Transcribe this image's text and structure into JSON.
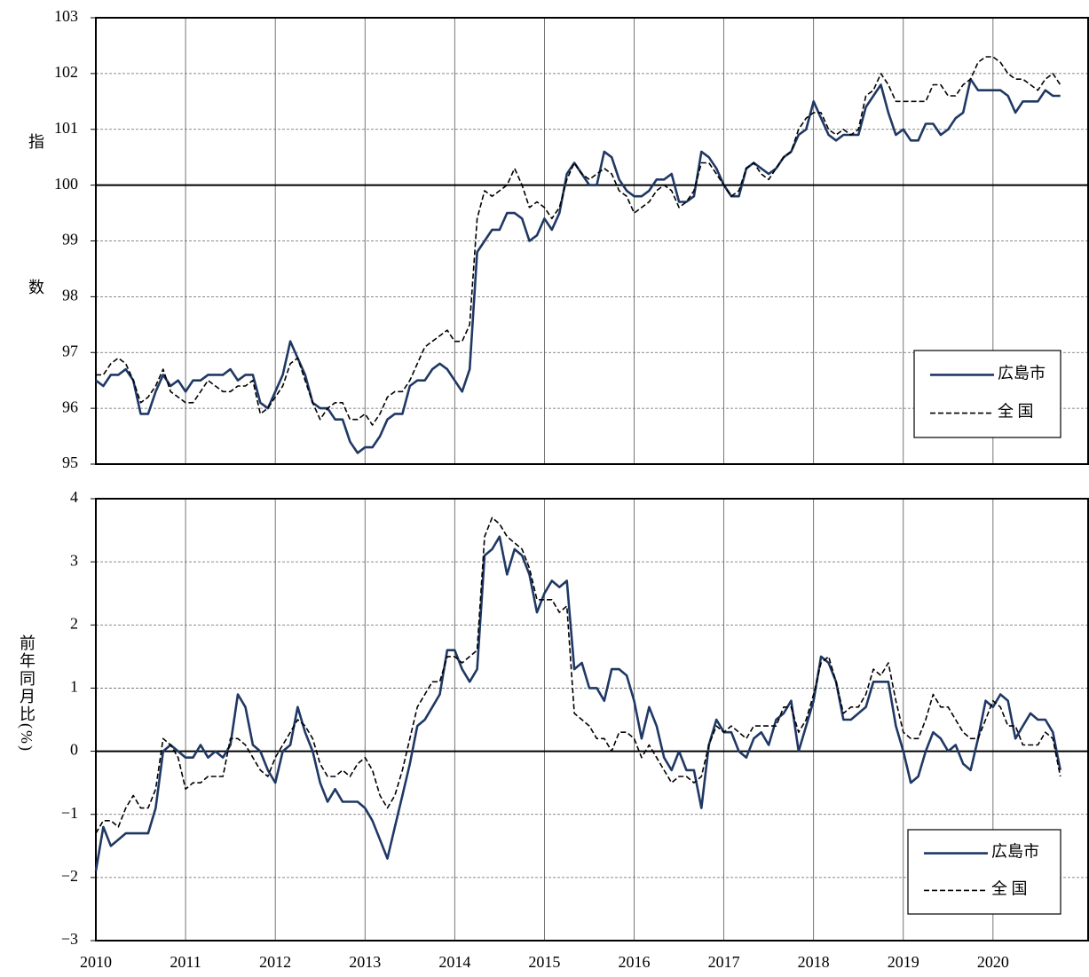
{
  "chart_data": [
    {
      "type": "line",
      "ylabel": "指数",
      "x": [
        2010,
        2010.083,
        2010.167,
        2010.25,
        2010.333,
        2010.417,
        2010.5,
        2010.583,
        2010.667,
        2010.75,
        2010.833,
        2010.917,
        2011,
        2011.083,
        2011.167,
        2011.25,
        2011.333,
        2011.417,
        2011.5,
        2011.583,
        2011.667,
        2011.75,
        2011.833,
        2011.917,
        2012,
        2012.083,
        2012.167,
        2012.25,
        2012.333,
        2012.417,
        2012.5,
        2012.583,
        2012.667,
        2012.75,
        2012.833,
        2012.917,
        2013,
        2013.083,
        2013.167,
        2013.25,
        2013.333,
        2013.417,
        2013.5,
        2013.583,
        2013.667,
        2013.75,
        2013.833,
        2013.917,
        2014,
        2014.083,
        2014.167,
        2014.25,
        2014.333,
        2014.417,
        2014.5,
        2014.583,
        2014.667,
        2014.75,
        2014.833,
        2014.917,
        2015,
        2015.083,
        2015.167,
        2015.25,
        2015.333,
        2015.417,
        2015.5,
        2015.583,
        2015.667,
        2015.75,
        2015.833,
        2015.917,
        2016,
        2016.083,
        2016.167,
        2016.25,
        2016.333,
        2016.417,
        2016.5,
        2016.583,
        2016.667,
        2016.75,
        2016.833,
        2016.917,
        2017,
        2017.083,
        2017.167,
        2017.25,
        2017.333,
        2017.417,
        2017.5,
        2017.583,
        2017.667,
        2017.75,
        2017.833,
        2017.917,
        2018,
        2018.083,
        2018.167,
        2018.25,
        2018.333,
        2018.417,
        2018.5,
        2018.583,
        2018.667,
        2018.75,
        2018.833,
        2018.917,
        2019,
        2019.083,
        2019.167,
        2019.25,
        2019.333,
        2019.417,
        2019.5,
        2019.583,
        2019.667,
        2019.75,
        2019.833,
        2019.917,
        2020,
        2020.083,
        2020.167,
        2020.25,
        2020.333,
        2020.417,
        2020.5,
        2020.583,
        2020.667,
        2020.75
      ],
      "series": [
        {
          "name": "広島市",
          "color": "#1f3864",
          "dash": false,
          "values": [
            96.5,
            96.4,
            96.6,
            96.6,
            96.7,
            96.5,
            95.9,
            95.9,
            96.3,
            96.6,
            96.4,
            96.5,
            96.3,
            96.5,
            96.5,
            96.6,
            96.6,
            96.6,
            96.7,
            96.5,
            96.6,
            96.6,
            96.1,
            96.0,
            96.3,
            96.6,
            97.2,
            96.9,
            96.6,
            96.1,
            96.0,
            96.0,
            95.8,
            95.8,
            95.4,
            95.2,
            95.3,
            95.3,
            95.5,
            95.8,
            95.9,
            95.9,
            96.4,
            96.5,
            96.5,
            96.7,
            96.8,
            96.7,
            96.5,
            96.3,
            96.7,
            98.8,
            99.0,
            99.2,
            99.2,
            99.5,
            99.5,
            99.4,
            99.0,
            99.1,
            99.4,
            99.2,
            99.5,
            100.2,
            100.4,
            100.2,
            100.0,
            100.0,
            100.6,
            100.5,
            100.1,
            99.9,
            99.8,
            99.8,
            99.9,
            100.1,
            100.1,
            100.2,
            99.7,
            99.7,
            99.8,
            100.6,
            100.5,
            100.3,
            100.0,
            99.8,
            99.8,
            100.3,
            100.4,
            100.3,
            100.2,
            100.3,
            100.5,
            100.6,
            100.9,
            101.0,
            101.5,
            101.2,
            100.9,
            100.8,
            100.9,
            100.9,
            100.9,
            101.4,
            101.6,
            101.8,
            101.3,
            100.9,
            101.0,
            100.8,
            100.8,
            101.1,
            101.1,
            100.9,
            101.0,
            101.2,
            101.3,
            101.9,
            101.7,
            101.7,
            101.7,
            101.7,
            101.6,
            101.3,
            101.5,
            101.5,
            101.5,
            101.7,
            101.6,
            101.6
          ]
        },
        {
          "name": "全 国",
          "color": "#000000",
          "dash": true,
          "values": [
            96.6,
            96.6,
            96.8,
            96.9,
            96.8,
            96.5,
            96.1,
            96.2,
            96.4,
            96.7,
            96.3,
            96.2,
            96.1,
            96.1,
            96.3,
            96.5,
            96.4,
            96.3,
            96.3,
            96.4,
            96.4,
            96.5,
            95.9,
            96.0,
            96.2,
            96.4,
            96.8,
            96.9,
            96.5,
            96.1,
            95.8,
            96.0,
            96.1,
            96.1,
            95.8,
            95.8,
            95.9,
            95.7,
            95.9,
            96.2,
            96.3,
            96.3,
            96.5,
            96.8,
            97.1,
            97.2,
            97.3,
            97.4,
            97.2,
            97.2,
            97.5,
            99.4,
            99.9,
            99.8,
            99.9,
            100.0,
            100.3,
            100.0,
            99.6,
            99.7,
            99.6,
            99.4,
            99.6,
            100.1,
            100.4,
            100.2,
            100.1,
            100.2,
            100.3,
            100.2,
            99.9,
            99.8,
            99.5,
            99.6,
            99.7,
            99.9,
            100.0,
            99.9,
            99.6,
            99.7,
            99.9,
            100.4,
            100.4,
            100.2,
            100.0,
            99.8,
            99.9,
            100.3,
            100.4,
            100.2,
            100.1,
            100.3,
            100.5,
            100.6,
            101.0,
            101.2,
            101.3,
            101.3,
            101.0,
            100.9,
            101.0,
            100.9,
            101.0,
            101.6,
            101.7,
            102.0,
            101.8,
            101.5,
            101.5,
            101.5,
            101.5,
            101.5,
            101.8,
            101.8,
            101.6,
            101.6,
            101.8,
            101.9,
            102.2,
            102.3,
            102.3,
            102.2,
            102.0,
            101.9,
            101.9,
            101.8,
            101.7,
            101.9,
            102.0,
            101.8
          ]
        }
      ],
      "xlim": [
        2010,
        2021.06
      ],
      "xticks": [
        2010,
        2011,
        2012,
        2013,
        2014,
        2015,
        2016,
        2017,
        2018,
        2019,
        2020
      ],
      "ylim": [
        95,
        103
      ],
      "yticks": [
        95,
        96,
        97,
        98,
        99,
        100,
        101,
        102,
        103
      ],
      "reference_line": 100,
      "grid": true,
      "legend": "lower right"
    },
    {
      "type": "line",
      "ylabel": "前年同月比(%)",
      "x": [
        2010,
        2010.083,
        2010.167,
        2010.25,
        2010.333,
        2010.417,
        2010.5,
        2010.583,
        2010.667,
        2010.75,
        2010.833,
        2010.917,
        2011,
        2011.083,
        2011.167,
        2011.25,
        2011.333,
        2011.417,
        2011.5,
        2011.583,
        2011.667,
        2011.75,
        2011.833,
        2011.917,
        2012,
        2012.083,
        2012.167,
        2012.25,
        2012.333,
        2012.417,
        2012.5,
        2012.583,
        2012.667,
        2012.75,
        2012.833,
        2012.917,
        2013,
        2013.083,
        2013.167,
        2013.25,
        2013.333,
        2013.417,
        2013.5,
        2013.583,
        2013.667,
        2013.75,
        2013.833,
        2013.917,
        2014,
        2014.083,
        2014.167,
        2014.25,
        2014.333,
        2014.417,
        2014.5,
        2014.583,
        2014.667,
        2014.75,
        2014.833,
        2014.917,
        2015,
        2015.083,
        2015.167,
        2015.25,
        2015.333,
        2015.417,
        2015.5,
        2015.583,
        2015.667,
        2015.75,
        2015.833,
        2015.917,
        2016,
        2016.083,
        2016.167,
        2016.25,
        2016.333,
        2016.417,
        2016.5,
        2016.583,
        2016.667,
        2016.75,
        2016.833,
        2016.917,
        2017,
        2017.083,
        2017.167,
        2017.25,
        2017.333,
        2017.417,
        2017.5,
        2017.583,
        2017.667,
        2017.75,
        2017.833,
        2017.917,
        2018,
        2018.083,
        2018.167,
        2018.25,
        2018.333,
        2018.417,
        2018.5,
        2018.583,
        2018.667,
        2018.75,
        2018.833,
        2018.917,
        2019,
        2019.083,
        2019.167,
        2019.25,
        2019.333,
        2019.417,
        2019.5,
        2019.583,
        2019.667,
        2019.75,
        2019.833,
        2019.917,
        2020,
        2020.083,
        2020.167,
        2020.25,
        2020.333,
        2020.417,
        2020.5,
        2020.583,
        2020.667,
        2020.75
      ],
      "series": [
        {
          "name": "広島市",
          "color": "#1f3864",
          "dash": false,
          "values": [
            -1.9,
            -1.2,
            -1.5,
            -1.4,
            -1.3,
            -1.3,
            -1.3,
            -1.3,
            -0.9,
            0.0,
            0.1,
            0.0,
            -0.1,
            -0.1,
            0.1,
            -0.1,
            0.0,
            -0.1,
            0.1,
            0.9,
            0.7,
            0.1,
            0.0,
            -0.3,
            -0.5,
            0.0,
            0.1,
            0.7,
            0.3,
            0.0,
            -0.5,
            -0.8,
            -0.6,
            -0.8,
            -0.8,
            -0.8,
            -0.9,
            -1.1,
            -1.4,
            -1.7,
            -1.2,
            -0.7,
            -0.2,
            0.4,
            0.5,
            0.7,
            0.9,
            1.6,
            1.6,
            1.3,
            1.1,
            1.3,
            3.1,
            3.2,
            3.4,
            2.8,
            3.2,
            3.1,
            2.8,
            2.2,
            2.5,
            2.7,
            2.6,
            2.7,
            1.3,
            1.4,
            1.0,
            1.0,
            0.8,
            1.3,
            1.3,
            1.2,
            0.8,
            0.2,
            0.7,
            0.4,
            -0.1,
            -0.3,
            0.0,
            -0.3,
            -0.3,
            -0.9,
            0.1,
            0.5,
            0.3,
            0.3,
            0.0,
            -0.1,
            0.2,
            0.3,
            0.1,
            0.5,
            0.6,
            0.8,
            0.0,
            0.4,
            0.8,
            1.5,
            1.4,
            1.1,
            0.5,
            0.5,
            0.6,
            0.7,
            1.1,
            1.1,
            1.1,
            0.4,
            0.0,
            -0.5,
            -0.4,
            0.0,
            0.3,
            0.2,
            0.0,
            0.1,
            -0.2,
            -0.3,
            0.2,
            0.8,
            0.7,
            0.9,
            0.8,
            0.2,
            0.4,
            0.6,
            0.5,
            0.5,
            0.3,
            -0.3
          ]
        },
        {
          "name": "全 国",
          "color": "#000000",
          "dash": true,
          "values": [
            -1.3,
            -1.1,
            -1.1,
            -1.2,
            -0.9,
            -0.7,
            -0.9,
            -0.9,
            -0.6,
            0.2,
            0.1,
            -0.1,
            -0.6,
            -0.5,
            -0.5,
            -0.4,
            -0.4,
            -0.4,
            0.2,
            0.2,
            0.1,
            -0.1,
            -0.3,
            -0.4,
            -0.1,
            0.1,
            0.3,
            0.5,
            0.4,
            0.2,
            -0.2,
            -0.4,
            -0.4,
            -0.3,
            -0.4,
            -0.2,
            -0.1,
            -0.3,
            -0.7,
            -0.9,
            -0.7,
            -0.3,
            0.2,
            0.7,
            0.9,
            1.1,
            1.1,
            1.5,
            1.5,
            1.4,
            1.5,
            1.6,
            3.4,
            3.7,
            3.6,
            3.4,
            3.3,
            3.2,
            2.9,
            2.4,
            2.4,
            2.4,
            2.2,
            2.3,
            0.6,
            0.5,
            0.4,
            0.2,
            0.2,
            0.0,
            0.3,
            0.3,
            0.2,
            -0.1,
            0.1,
            -0.1,
            -0.3,
            -0.5,
            -0.4,
            -0.4,
            -0.5,
            -0.4,
            0.1,
            0.4,
            0.3,
            0.4,
            0.3,
            0.2,
            0.4,
            0.4,
            0.4,
            0.4,
            0.7,
            0.7,
            0.3,
            0.5,
            0.9,
            1.4,
            1.5,
            1.1,
            0.6,
            0.7,
            0.7,
            0.9,
            1.3,
            1.2,
            1.4,
            0.8,
            0.3,
            0.2,
            0.2,
            0.5,
            0.9,
            0.7,
            0.7,
            0.5,
            0.3,
            0.2,
            0.2,
            0.5,
            0.8,
            0.7,
            0.4,
            0.4,
            0.1,
            0.1,
            0.1,
            0.3,
            0.2,
            -0.4
          ]
        }
      ],
      "xlim": [
        2010,
        2021.06
      ],
      "xticks": [
        2010,
        2011,
        2012,
        2013,
        2014,
        2015,
        2016,
        2017,
        2018,
        2019,
        2020
      ],
      "ylim": [
        -3,
        4
      ],
      "yticks": [
        {
          "value": -3,
          "label": "−3"
        },
        {
          "value": -2,
          "label": "−2"
        },
        {
          "value": -1,
          "label": "−1"
        },
        0,
        1,
        2,
        3,
        4
      ],
      "reference_line": 0,
      "grid": true,
      "legend": "lower right",
      "show_xtick_labels": true
    }
  ]
}
